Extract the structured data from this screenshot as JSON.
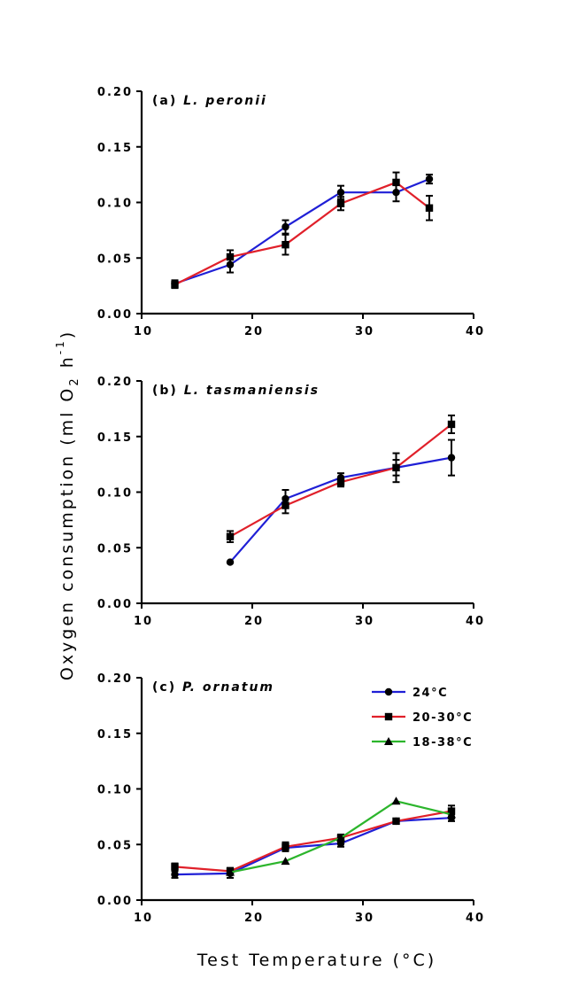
{
  "figure": {
    "xlabel": "Test Temperature (°C)",
    "ylabel_main": "Oxygen consumption (ml O",
    "ylabel_sub": "2",
    "ylabel_unit": " h",
    "ylabel_sup": "-1",
    "ylabel_close": ")"
  },
  "legend": {
    "items": [
      {
        "label": "24°C",
        "color": "#1f1fd6",
        "marker": "circle"
      },
      {
        "label": "20-30°C",
        "color": "#e0202a",
        "marker": "square"
      },
      {
        "label": "18-38°C",
        "color": "#2cb52c",
        "marker": "triangle"
      }
    ]
  },
  "chart_data": [
    {
      "type": "line",
      "panel_tag": "(a)",
      "species": "L. peronii",
      "xlim": [
        10,
        40
      ],
      "ylim": [
        0,
        0.2
      ],
      "xticks": [
        "10",
        "20",
        "30",
        "40"
      ],
      "yticks": [
        "0.00",
        "0.05",
        "0.10",
        "0.15",
        "0.20"
      ],
      "series": [
        {
          "name": "24°C",
          "color": "#1f1fd6",
          "marker": "circle",
          "x": [
            13,
            18,
            23,
            28,
            33,
            36
          ],
          "y": [
            0.027,
            0.044,
            0.078,
            0.109,
            0.109,
            0.121
          ],
          "err": [
            0.003,
            0.007,
            0.006,
            0.006,
            0.008,
            0.004
          ]
        },
        {
          "name": "20-30°C",
          "color": "#e0202a",
          "marker": "square",
          "x": [
            13,
            18,
            23,
            28,
            33,
            36
          ],
          "y": [
            0.026,
            0.051,
            0.062,
            0.099,
            0.118,
            0.095
          ],
          "err": [
            0.003,
            0.006,
            0.009,
            0.006,
            0.009,
            0.011
          ]
        }
      ]
    },
    {
      "type": "line",
      "panel_tag": "(b)",
      "species": "L. tasmaniensis",
      "xlim": [
        10,
        40
      ],
      "ylim": [
        0,
        0.2
      ],
      "xticks": [
        "10",
        "20",
        "30",
        "40"
      ],
      "yticks": [
        "0.00",
        "0.05",
        "0.10",
        "0.15",
        "0.20"
      ],
      "series": [
        {
          "name": "24°C",
          "color": "#1f1fd6",
          "marker": "circle",
          "x": [
            18,
            23,
            28,
            33,
            38
          ],
          "y": [
            0.037,
            0.094,
            0.113,
            0.122,
            0.131
          ],
          "err": [
            0.0,
            0.008,
            0.004,
            0.013,
            0.016
          ]
        },
        {
          "name": "20-30°C",
          "color": "#e0202a",
          "marker": "square",
          "x": [
            18,
            23,
            28,
            33,
            38
          ],
          "y": [
            0.06,
            0.088,
            0.109,
            0.122,
            0.161
          ],
          "err": [
            0.005,
            0.007,
            0.004,
            0.007,
            0.008
          ]
        }
      ]
    },
    {
      "type": "line",
      "panel_tag": "(c)",
      "species": "P. ornatum",
      "xlim": [
        10,
        40
      ],
      "ylim": [
        0,
        0.2
      ],
      "xticks": [
        "10",
        "20",
        "30",
        "40"
      ],
      "yticks": [
        "0.00",
        "0.05",
        "0.10",
        "0.15",
        "0.20"
      ],
      "series": [
        {
          "name": "24°C",
          "color": "#1f1fd6",
          "marker": "circle",
          "x": [
            13,
            18,
            23,
            28,
            33,
            38
          ],
          "y": [
            0.023,
            0.024,
            0.047,
            0.051,
            0.071,
            0.074
          ],
          "err": [
            0.003,
            0.004,
            0.003,
            0.003,
            0.002,
            0.003
          ]
        },
        {
          "name": "20-30°C",
          "color": "#e0202a",
          "marker": "square",
          "x": [
            13,
            18,
            23,
            28,
            33,
            38
          ],
          "y": [
            0.03,
            0.026,
            0.048,
            0.056,
            0.071,
            0.08
          ],
          "err": [
            0.003,
            0.003,
            0.004,
            0.003,
            0.002,
            0.005
          ]
        },
        {
          "name": "18-38°C",
          "color": "#2cb52c",
          "marker": "triangle",
          "x": [
            18,
            23,
            28,
            33,
            38
          ],
          "y": [
            0.025,
            0.035,
            0.056,
            0.089,
            0.077
          ],
          "err": [
            0,
            0,
            0,
            0,
            0
          ]
        }
      ]
    }
  ]
}
